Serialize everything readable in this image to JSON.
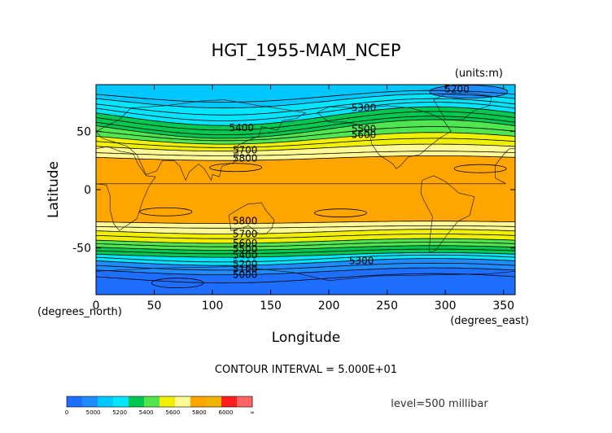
{
  "chart_data": {
    "type": "contour",
    "title": "HGT_1955-MAM_NCEP",
    "units_note": "(units:m)",
    "xlabel": "Longitude",
    "ylabel": "Latitude",
    "x_unit_note": "(degrees_east)",
    "y_unit_note": "(degrees_north)",
    "xlim": [
      0,
      360
    ],
    "ylim": [
      -90,
      90
    ],
    "x_ticks": [
      0,
      50,
      100,
      150,
      200,
      250,
      300,
      350
    ],
    "y_ticks": [
      50,
      0,
      -50
    ],
    "contour_interval_text": "CONTOUR INTERVAL = 5.000E+01",
    "level_text": "level=500 millibar",
    "colorbar": {
      "tick_labels": [
        "0",
        "5000",
        "5200",
        "5400",
        "5600",
        "5800",
        "6000",
        "∞"
      ],
      "colors": [
        "#1e6eff",
        "#1e8cff",
        "#00c8ff",
        "#00e6ff",
        "#00c850",
        "#50e650",
        "#f0f000",
        "#fffa96",
        "#ffa500",
        "#f0b400",
        "#ff1e1e",
        "#ff6464"
      ]
    },
    "bands": [
      {
        "value_range": [
          6000,
          6000
        ],
        "color": "#ffa500"
      },
      {
        "value_range": [
          5800,
          5900
        ],
        "color": "#f0f000"
      },
      {
        "value_range": [
          5600,
          5700
        ],
        "color": "#50e650"
      },
      {
        "value_range": [
          5400,
          5500
        ],
        "color": "#00e6ff"
      },
      {
        "value_range": [
          5200,
          5300
        ],
        "color": "#1e8cff"
      }
    ],
    "contour_labels": [
      {
        "text": "5200",
        "lon": 310,
        "lat": 86
      },
      {
        "text": "5300",
        "lon": 230,
        "lat": 70
      },
      {
        "text": "5400",
        "lon": 125,
        "lat": 53
      },
      {
        "text": "5500",
        "lon": 230,
        "lat": 52
      },
      {
        "text": "5600",
        "lon": 230,
        "lat": 47
      },
      {
        "text": "5700",
        "lon": 128,
        "lat": 34
      },
      {
        "text": "5800",
        "lon": 128,
        "lat": 27
      },
      {
        "text": "5800",
        "lon": 128,
        "lat": -27
      },
      {
        "text": "5700",
        "lon": 128,
        "lat": -38
      },
      {
        "text": "5600",
        "lon": 128,
        "lat": -46
      },
      {
        "text": "5500",
        "lon": 128,
        "lat": -51
      },
      {
        "text": "5400",
        "lon": 128,
        "lat": -56
      },
      {
        "text": "5300",
        "lon": 228,
        "lat": -61
      },
      {
        "text": "5200",
        "lon": 128,
        "lat": -64
      },
      {
        "text": "5100",
        "lon": 128,
        "lat": -68
      },
      {
        "text": "5000",
        "lon": 128,
        "lat": -73
      }
    ]
  }
}
